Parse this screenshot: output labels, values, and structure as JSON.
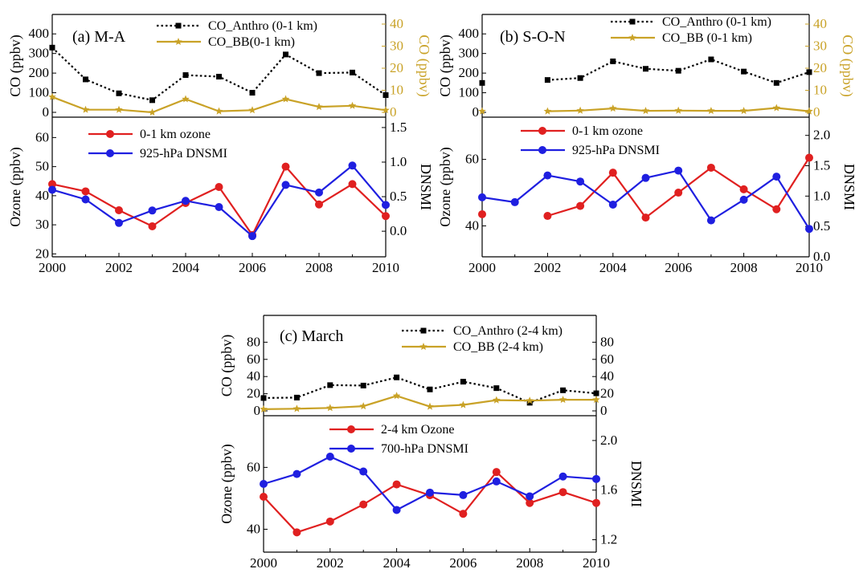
{
  "colors": {
    "co_anthro": "#000000",
    "co_bb": "#c9a227",
    "ozone": "#e02020",
    "dnsmi": "#1f1fe0",
    "co_right_axis": "#c9a227"
  },
  "chart_data": [
    {
      "id": "a",
      "type": "line",
      "label": "(a) M-A",
      "x": [
        2000,
        2001,
        2002,
        2003,
        2004,
        2005,
        2006,
        2007,
        2008,
        2009,
        2010
      ],
      "xlim": [
        2000,
        2010
      ],
      "xticks": [
        "2000",
        "2002",
        "2004",
        "2006",
        "2008",
        "2010"
      ],
      "co": {
        "ylabel_left": "CO (ppbv)",
        "ylabel_right": "CO (ppbv)",
        "ylim_left": [
          0,
          450
        ],
        "yticks_left": [
          "0",
          "100",
          "200",
          "300",
          "400"
        ],
        "ylim_right": [
          0,
          40
        ],
        "yticks_right": [
          "0",
          "10",
          "20",
          "30",
          "40"
        ],
        "series": [
          {
            "name": "CO_Anthro (0-1 km)",
            "axis": "left",
            "style": "dotted-square",
            "values": [
              330,
              168,
              97,
              62,
              190,
              182,
              100,
              295,
              200,
              203,
              88
            ]
          },
          {
            "name": "CO_BB(0-1 km)",
            "axis": "right",
            "style": "solid-star",
            "values": [
              7,
              1.2,
              1.2,
              0,
              6,
              0.5,
              1,
              6,
              2.5,
              3,
              1
            ]
          }
        ]
      },
      "ozone": {
        "ylabel_left": "Ozone (ppbv)",
        "ylabel_right": "DNSMI",
        "ylim_left": [
          19,
          67
        ],
        "yticks_left": [
          "20",
          "30",
          "40",
          "50",
          "60"
        ],
        "ylim_right": [
          -0.37,
          1.65
        ],
        "yticks_right": [
          "0.0",
          "0.5",
          "1.0",
          "1.5"
        ],
        "series": [
          {
            "name": "0-1 km ozone",
            "axis": "left",
            "color_key": "ozone",
            "values": [
              44,
              41.5,
              35,
              29.5,
              37.5,
              43,
              26.5,
              50,
              37,
              44,
              33
            ]
          },
          {
            "name": "925-hPa DNSMI",
            "axis": "right",
            "color_key": "dnsmi",
            "values": [
              0.6,
              0.46,
              0.12,
              0.3,
              0.44,
              0.35,
              -0.07,
              0.67,
              0.56,
              0.95,
              0.38
            ]
          }
        ]
      }
    },
    {
      "id": "b",
      "type": "line",
      "label": "(b) S-O-N",
      "x": [
        2000,
        2001,
        2002,
        2003,
        2004,
        2005,
        2006,
        2007,
        2008,
        2009,
        2010
      ],
      "xlim": [
        2000,
        2010
      ],
      "xticks": [
        "2000",
        "2002",
        "2004",
        "2006",
        "2008",
        "2010"
      ],
      "co": {
        "ylabel_left": "CO (ppbv)",
        "ylabel_right": "CO (ppbv)",
        "ylim_left": [
          0,
          450
        ],
        "yticks_left": [
          "0",
          "100",
          "200",
          "300",
          "400"
        ],
        "ylim_right": [
          0,
          40
        ],
        "yticks_right": [
          "0",
          "10",
          "20",
          "30",
          "40"
        ],
        "series": [
          {
            "name": "CO_Anthro (0-1 km)",
            "axis": "left",
            "style": "dotted-square",
            "values": [
              150,
              null,
              165,
              175,
              260,
              222,
              212,
              270,
              208,
              150,
              205
            ]
          },
          {
            "name": "CO_BB (0-1 km)",
            "axis": "right",
            "style": "solid-star",
            "values": [
              0.5,
              null,
              0.5,
              0.8,
              1.8,
              0.7,
              0.8,
              0.7,
              0.7,
              2,
              0.5
            ]
          }
        ]
      },
      "ozone": {
        "ylabel_left": "Ozone (ppbv)",
        "ylabel_right": "DNSMI",
        "ylim_left": [
          30.7,
          72.7
        ],
        "yticks_left": [
          "40",
          "60"
        ],
        "ylim_right": [
          0,
          2.3
        ],
        "yticks_right": [
          "0.0",
          "0.5",
          "1.0",
          "1.5",
          "2.0"
        ],
        "series": [
          {
            "name": "0-1 km ozone",
            "axis": "left",
            "color_key": "ozone",
            "values": [
              43.5,
              null,
              43,
              46,
              56,
              42.5,
              50,
              57.5,
              51,
              45,
              60.5
            ]
          },
          {
            "name": "925-hPa DNSMI",
            "axis": "right",
            "color_key": "dnsmi",
            "values": [
              0.98,
              0.9,
              1.34,
              1.24,
              0.86,
              1.3,
              1.42,
              0.6,
              0.94,
              1.32,
              0.46
            ]
          }
        ]
      }
    },
    {
      "id": "c",
      "type": "line",
      "label": "(c) March",
      "x": [
        2000,
        2001,
        2002,
        2003,
        2004,
        2005,
        2006,
        2007,
        2008,
        2009,
        2010
      ],
      "xlim": [
        2000,
        2010
      ],
      "xticks": [
        "2000",
        "2002",
        "2004",
        "2006",
        "2008",
        "2010"
      ],
      "co": {
        "ylabel_left": "CO (ppbv)",
        "ylabel_right": "",
        "ylim_left": [
          0,
          100
        ],
        "yticks_left": [
          "0",
          "20",
          "40",
          "60",
          "80"
        ],
        "ylim_right": [
          0,
          100
        ],
        "yticks_right": [
          "0",
          "20",
          "40",
          "60",
          "80"
        ],
        "series": [
          {
            "name": "CO_Anthro (2-4 km)",
            "axis": "left",
            "style": "dotted-square",
            "values": [
              15,
              15.5,
              30,
              29.5,
              39,
              25,
              34,
              26.5,
              9.5,
              24,
              20.5
            ]
          },
          {
            "name": "CO_BB (2-4 km)",
            "axis": "left",
            "style": "solid-star",
            "values": [
              2,
              2.5,
              3.5,
              5.5,
              17.5,
              5,
              7,
              12.5,
              12,
              13,
              13
            ]
          }
        ]
      },
      "ozone": {
        "ylabel_left": "Ozone (ppbv)",
        "ylabel_right": "DNSMI",
        "ylim_left": [
          32.6,
          76.7
        ],
        "yticks_left": [
          "40",
          "60"
        ],
        "ylim_right": [
          1.1,
          2.2
        ],
        "yticks_right": [
          "1.2",
          "1.6",
          "2.0"
        ],
        "series": [
          {
            "name": "2-4 km Ozone",
            "axis": "left",
            "color_key": "ozone",
            "values": [
              50.5,
              39,
              42.5,
              48,
              54.5,
              51,
              45,
              58.5,
              48.5,
              52,
              48.5
            ]
          },
          {
            "name": "700-hPa DNSMI",
            "axis": "right",
            "color_key": "dnsmi",
            "values": [
              1.65,
              1.73,
              1.87,
              1.75,
              1.44,
              1.58,
              1.56,
              1.67,
              1.55,
              1.71,
              1.69
            ]
          }
        ]
      }
    }
  ]
}
